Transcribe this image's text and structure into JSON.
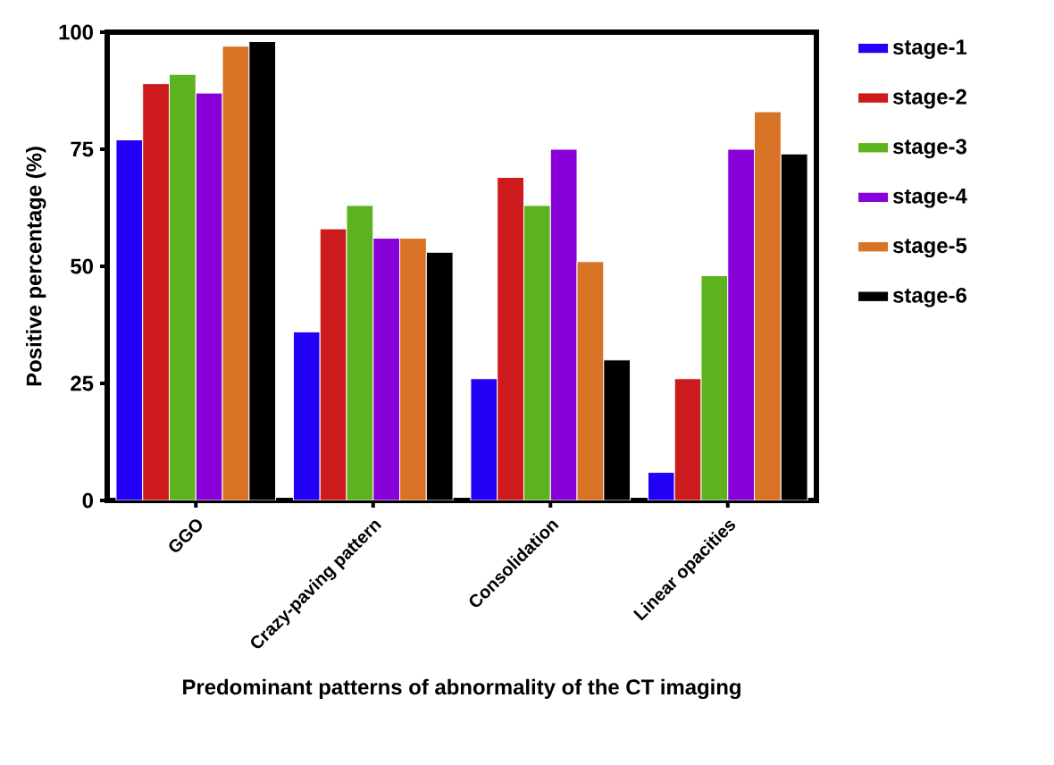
{
  "chart_data": {
    "type": "bar",
    "xlabel": "Predominant patterns of abnormality of the CT imaging",
    "ylabel": "Positive percentage (%)",
    "categories": [
      "GGO",
      "Crazy-paving pattern",
      "Consolidation",
      "Linear opacities"
    ],
    "series": [
      {
        "name": "stage-1",
        "color": "#2200f5",
        "values": [
          77,
          36,
          26,
          6
        ]
      },
      {
        "name": "stage-2",
        "color": "#cc1a1d",
        "values": [
          89,
          58,
          69,
          26
        ]
      },
      {
        "name": "stage-3",
        "color": "#5db31f",
        "values": [
          91,
          63,
          63,
          48
        ]
      },
      {
        "name": "stage-4",
        "color": "#8800d8",
        "values": [
          87,
          56,
          75,
          75
        ]
      },
      {
        "name": "stage-5",
        "color": "#d87325",
        "values": [
          97,
          56,
          51,
          83
        ]
      },
      {
        "name": "stage-6",
        "color": "#000000",
        "values": [
          98,
          53,
          30,
          74
        ]
      }
    ],
    "ylim": [
      0,
      100
    ],
    "yticks": [
      0,
      25,
      50,
      75,
      100
    ],
    "legend": "right",
    "grid": false
  }
}
